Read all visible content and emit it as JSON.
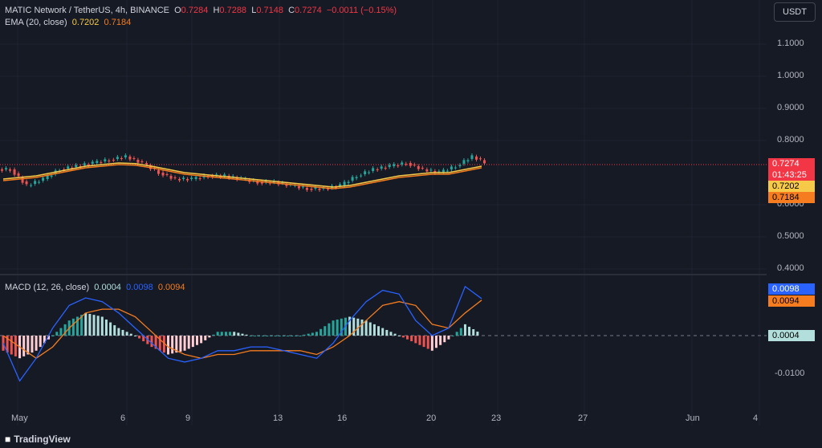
{
  "header": {
    "symbol": "MATIC Network / TetherUS, 4h, BINANCE",
    "o_label": "O",
    "o_value": "0.7284",
    "h_label": "H",
    "h_value": "0.7288",
    "l_label": "L",
    "l_value": "0.7148",
    "c_label": "C",
    "c_value": "0.7274",
    "change": "−0.0011 (−0.15%)",
    "ema_label": "EMA (20, close)",
    "ema_v1": "0.7202",
    "ema_v2": "0.7184"
  },
  "currency_button": "USDT",
  "price_axis": [
    "1.1000",
    "1.0000",
    "0.9000",
    "0.8000",
    "0.6000",
    "0.5000",
    "0.4000"
  ],
  "price_tags": {
    "last": "0.7274",
    "countdown": "01:43:25",
    "ema1": "0.7202",
    "ema2": "0.7184"
  },
  "macd": {
    "label": "MACD (12, 26, close)",
    "hist": "0.0004",
    "macd": "0.0098",
    "signal": "0.0094",
    "axis": [
      "-0.0100"
    ],
    "tag_macd": "0.0098",
    "tag_signal": "0.0094",
    "tag_hist": "0.0004"
  },
  "time_axis": [
    "May",
    "6",
    "9",
    "13",
    "16",
    "20",
    "23",
    "27",
    "Jun",
    "4"
  ],
  "branding": "TradingView",
  "colors": {
    "up": "#26a69a",
    "down": "#ef5350",
    "ema": "#f7c948",
    "signal": "#f57c1f",
    "macd": "#2962ff",
    "bg": "#161a25"
  },
  "chart_data": {
    "type": "line",
    "price": {
      "ema_20": [
        0.68,
        0.685,
        0.69,
        0.7,
        0.71,
        0.72,
        0.725,
        0.73,
        0.728,
        0.72,
        0.71,
        0.7,
        0.695,
        0.69,
        0.685,
        0.68,
        0.675,
        0.67,
        0.665,
        0.66,
        0.655,
        0.66,
        0.67,
        0.68,
        0.69,
        0.695,
        0.7,
        0.7,
        0.71,
        0.72
      ],
      "close": [
        0.71,
        0.66,
        0.68,
        0.71,
        0.72,
        0.73,
        0.74,
        0.75,
        0.73,
        0.7,
        0.68,
        0.68,
        0.69,
        0.69,
        0.68,
        0.67,
        0.67,
        0.66,
        0.65,
        0.65,
        0.66,
        0.69,
        0.71,
        0.72,
        0.73,
        0.71,
        0.7,
        0.72,
        0.75,
        0.7274
      ]
    },
    "macd_panel": {
      "histogram": [
        -0.004,
        -0.006,
        -0.004,
        0.0,
        0.004,
        0.006,
        0.005,
        0.002,
        0.0,
        -0.003,
        -0.005,
        -0.004,
        -0.002,
        0.001,
        0.001,
        0.0,
        0.0,
        0.0,
        0.0,
        0.001,
        0.004,
        0.005,
        0.004,
        0.002,
        0.0,
        -0.002,
        -0.004,
        -0.001,
        0.003,
        0.0004
      ],
      "macd": [
        -0.002,
        -0.012,
        -0.006,
        0.002,
        0.008,
        0.01,
        0.009,
        0.006,
        0.002,
        -0.002,
        -0.006,
        -0.007,
        -0.006,
        -0.004,
        -0.004,
        -0.003,
        -0.003,
        -0.004,
        -0.005,
        -0.006,
        -0.002,
        0.004,
        0.009,
        0.012,
        0.011,
        0.004,
        0.0,
        0.002,
        0.013,
        0.0098
      ],
      "signal": [
        0.0,
        -0.003,
        -0.006,
        -0.003,
        0.002,
        0.006,
        0.007,
        0.007,
        0.005,
        0.001,
        -0.003,
        -0.005,
        -0.006,
        -0.005,
        -0.005,
        -0.004,
        -0.004,
        -0.004,
        -0.004,
        -0.005,
        -0.003,
        0.0,
        0.004,
        0.008,
        0.009,
        0.008,
        0.003,
        0.002,
        0.006,
        0.0094
      ]
    }
  }
}
